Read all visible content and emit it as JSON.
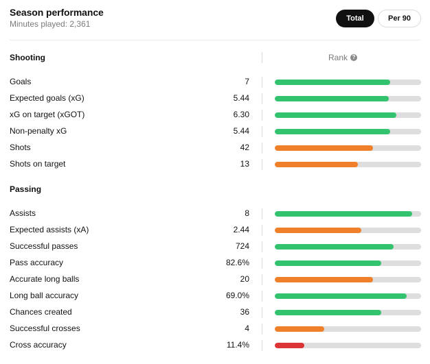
{
  "header": {
    "title": "Season performance",
    "subtitle": "Minutes played: 2,361"
  },
  "toggle": {
    "total_label": "Total",
    "per90_label": "Per 90",
    "selected": "Total"
  },
  "rank": {
    "label": "Rank",
    "icon": "info-icon",
    "icon_glyph": "?"
  },
  "colors": {
    "green": "#33c36f",
    "orange": "#f07f2a",
    "red": "#dd3535",
    "track": "#dedede"
  },
  "sections": [
    {
      "title": "Shooting",
      "stats": [
        {
          "label": "Goals",
          "value": "7",
          "rank_fraction": 0.79,
          "color": "green"
        },
        {
          "label": "Expected goals (xG)",
          "value": "5.44",
          "rank_fraction": 0.78,
          "color": "green"
        },
        {
          "label": "xG on target (xGOT)",
          "value": "6.30",
          "rank_fraction": 0.83,
          "color": "green"
        },
        {
          "label": "Non-penalty xG",
          "value": "5.44",
          "rank_fraction": 0.79,
          "color": "green"
        },
        {
          "label": "Shots",
          "value": "42",
          "rank_fraction": 0.67,
          "color": "orange"
        },
        {
          "label": "Shots on target",
          "value": "13",
          "rank_fraction": 0.57,
          "color": "orange"
        }
      ]
    },
    {
      "title": "Passing",
      "stats": [
        {
          "label": "Assists",
          "value": "8",
          "rank_fraction": 0.94,
          "color": "green"
        },
        {
          "label": "Expected assists (xA)",
          "value": "2.44",
          "rank_fraction": 0.59,
          "color": "orange"
        },
        {
          "label": "Successful passes",
          "value": "724",
          "rank_fraction": 0.81,
          "color": "green"
        },
        {
          "label": "Pass accuracy",
          "value": "82.6%",
          "rank_fraction": 0.73,
          "color": "green"
        },
        {
          "label": "Accurate long balls",
          "value": "20",
          "rank_fraction": 0.67,
          "color": "orange"
        },
        {
          "label": "Long ball accuracy",
          "value": "69.0%",
          "rank_fraction": 0.9,
          "color": "green"
        },
        {
          "label": "Chances created",
          "value": "36",
          "rank_fraction": 0.73,
          "color": "green"
        },
        {
          "label": "Successful crosses",
          "value": "4",
          "rank_fraction": 0.34,
          "color": "orange"
        },
        {
          "label": "Cross accuracy",
          "value": "11.4%",
          "rank_fraction": 0.2,
          "color": "red"
        }
      ]
    }
  ]
}
